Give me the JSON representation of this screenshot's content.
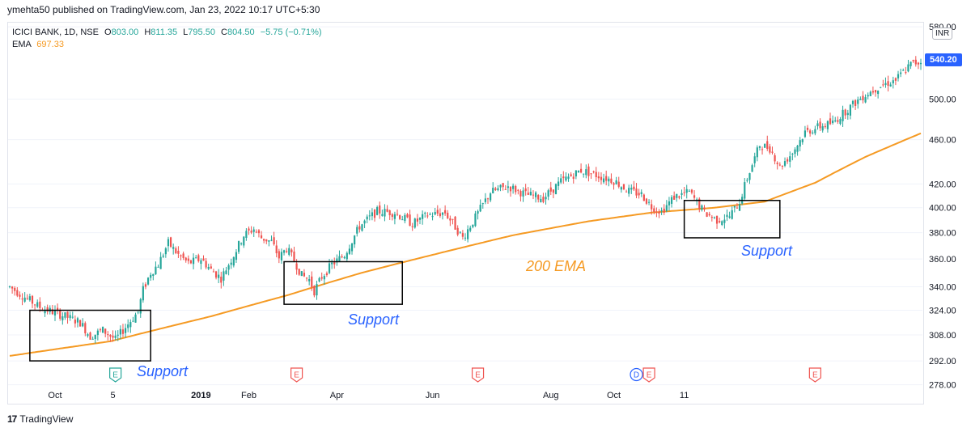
{
  "header": {
    "text": "ymehta50 published on TradingView.com, Jan 23, 2022 10:17 UTC+5:30"
  },
  "legend": {
    "symbol": "ICICI BANK, 1D, NSE",
    "o_label": "O",
    "o": "803.00",
    "h_label": "H",
    "h": "811.35",
    "l_label": "L",
    "l": "795.50",
    "c_label": "C",
    "c": "804.50",
    "change": "−5.75 (−0.71%)",
    "ema_label": "EMA",
    "ema_value": "697.33"
  },
  "currency_badge": "INR",
  "last_price": "540.20",
  "footer": {
    "logo": "17",
    "brand": "TradingView"
  },
  "colors": {
    "up": "#26a69a",
    "down": "#ef5350",
    "ema": "#f59a23",
    "accent": "#2962ff",
    "annotation": "#2962ff",
    "box": "#000000"
  },
  "chart_data": {
    "type": "candlestick",
    "symbol": "ICICI BANK, 1D, NSE",
    "y_scale": "log",
    "y_ticks": [
      278,
      292,
      308,
      324,
      340,
      360,
      380,
      400,
      420,
      460,
      500,
      580
    ],
    "ylim": [
      276,
      585
    ],
    "x_ticks": [
      "Oct",
      "5",
      "2019",
      "Feb",
      "Apr",
      "Jun",
      "Aug",
      "Oct",
      "11"
    ],
    "price_path": [
      [
        0,
        340
      ],
      [
        5,
        334
      ],
      [
        12,
        326
      ],
      [
        22,
        320
      ],
      [
        28,
        316
      ],
      [
        32,
        307
      ],
      [
        37,
        311
      ],
      [
        42,
        305
      ],
      [
        46,
        313
      ],
      [
        51,
        323
      ],
      [
        53,
        338
      ],
      [
        56,
        350
      ],
      [
        59,
        356
      ],
      [
        63,
        372
      ],
      [
        67,
        363
      ],
      [
        71,
        357
      ],
      [
        76,
        360
      ],
      [
        80,
        352
      ],
      [
        84,
        346
      ],
      [
        89,
        363
      ],
      [
        93,
        378
      ],
      [
        97,
        383
      ],
      [
        100,
        376
      ],
      [
        104,
        373
      ],
      [
        107,
        361
      ],
      [
        110,
        368
      ],
      [
        113,
        359
      ],
      [
        116,
        348
      ],
      [
        119,
        345
      ],
      [
        121,
        337
      ],
      [
        124,
        347
      ],
      [
        128,
        356
      ],
      [
        133,
        363
      ],
      [
        139,
        385
      ],
      [
        146,
        397
      ],
      [
        153,
        396
      ],
      [
        160,
        387
      ],
      [
        166,
        394
      ],
      [
        173,
        396
      ],
      [
        180,
        376
      ],
      [
        185,
        392
      ],
      [
        191,
        413
      ],
      [
        198,
        418
      ],
      [
        205,
        411
      ],
      [
        212,
        408
      ],
      [
        219,
        422
      ],
      [
        227,
        432
      ],
      [
        234,
        427
      ],
      [
        240,
        423
      ],
      [
        246,
        414
      ],
      [
        251,
        411
      ],
      [
        255,
        401
      ],
      [
        259,
        397
      ],
      [
        264,
        409
      ],
      [
        270,
        413
      ],
      [
        276,
        396
      ],
      [
        281,
        390
      ],
      [
        286,
        393
      ],
      [
        290,
        405
      ],
      [
        293,
        425
      ],
      [
        298,
        455
      ],
      [
        302,
        452
      ],
      [
        306,
        435
      ],
      [
        311,
        448
      ],
      [
        316,
        467
      ],
      [
        321,
        472
      ],
      [
        327,
        476
      ],
      [
        333,
        490
      ],
      [
        339,
        503
      ],
      [
        346,
        514
      ],
      [
        352,
        520
      ],
      [
        358,
        537
      ],
      [
        362,
        540
      ]
    ],
    "ema_path": [
      [
        0,
        295
      ],
      [
        40,
        304
      ],
      [
        80,
        320
      ],
      [
        110,
        334
      ],
      [
        140,
        350
      ],
      [
        170,
        364
      ],
      [
        200,
        378
      ],
      [
        230,
        389
      ],
      [
        255,
        396
      ],
      [
        280,
        400
      ],
      [
        300,
        405
      ],
      [
        320,
        421
      ],
      [
        340,
        444
      ],
      [
        362,
        466
      ]
    ],
    "events": [
      {
        "type": "earnings",
        "label": "E",
        "x": 42
      },
      {
        "type": "earnings",
        "label": "E",
        "x": 114
      },
      {
        "type": "earnings",
        "label": "E",
        "x": 186
      },
      {
        "type": "dividend",
        "label": "D",
        "x": 249
      },
      {
        "type": "earnings",
        "label": "E",
        "x": 254
      },
      {
        "type": "earnings",
        "label": "E",
        "x": 320
      }
    ],
    "annotations": {
      "ema_label": "200 EMA",
      "support_labels": [
        "Support",
        "Support",
        "Support"
      ],
      "support_zones": [
        {
          "x0": 8,
          "x1": 56,
          "y0": 292,
          "y1": 324
        },
        {
          "x0": 109,
          "x1": 156,
          "y0": 328,
          "y1": 358
        },
        {
          "x0": 268,
          "x1": 306,
          "y0": 376,
          "y1": 406
        }
      ]
    }
  }
}
